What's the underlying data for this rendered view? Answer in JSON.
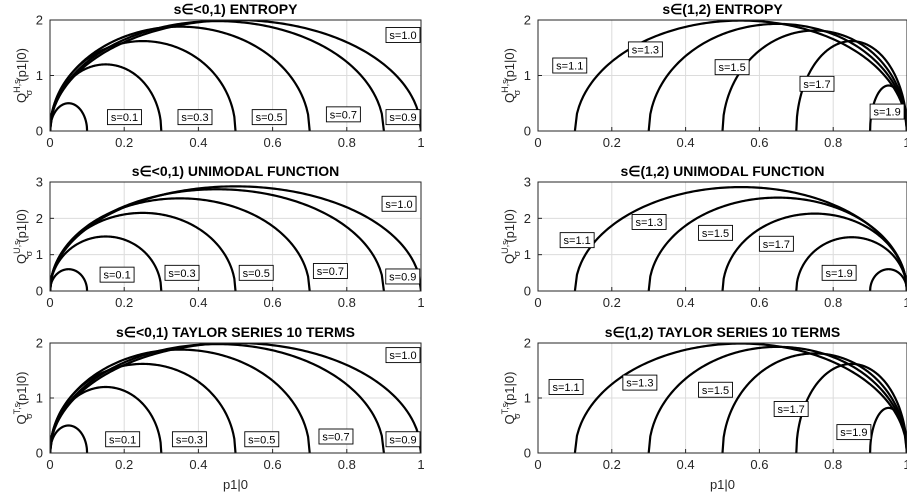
{
  "chart_data": [
    {
      "type": "line",
      "title": "s∈<0,1) ENTROPY",
      "ylabel": {
        "main": "Q",
        "sup": "H,s",
        "sub": "σ",
        "rest": "(p1|0)"
      },
      "xlabel": "",
      "xlim": [
        0,
        1
      ],
      "ylim": [
        0,
        2
      ],
      "xticks": [
        0,
        0.2,
        0.4,
        0.6,
        0.8,
        1
      ],
      "xticklabels": [
        "0",
        "0.2",
        "0.4",
        "0.6",
        "0.8",
        "1"
      ],
      "yticks": [
        0,
        1,
        2
      ],
      "yticklabels": [
        "0",
        "1",
        "2"
      ],
      "grid": true,
      "series": [
        {
          "name": "s=0.1",
          "x_range": [
            0,
            0.1
          ],
          "peak_x": 0.05,
          "peak_y": 0.5,
          "label_at": [
            0.155,
            0.25
          ]
        },
        {
          "name": "s=0.3",
          "x_range": [
            0,
            0.3
          ],
          "peak_x": 0.15,
          "peak_y": 1.2,
          "label_at": [
            0.345,
            0.25
          ]
        },
        {
          "name": "s=0.5",
          "x_range": [
            0,
            0.5
          ],
          "peak_x": 0.25,
          "peak_y": 1.62,
          "label_at": [
            0.545,
            0.25
          ]
        },
        {
          "name": "s=0.7",
          "x_range": [
            0,
            0.7
          ],
          "peak_x": 0.35,
          "peak_y": 1.88,
          "label_at": [
            0.745,
            0.3
          ]
        },
        {
          "name": "s=0.9",
          "x_range": [
            0,
            0.9
          ],
          "peak_x": 0.45,
          "peak_y": 1.98,
          "label_at": [
            0.945,
            0.25
          ]
        },
        {
          "name": "s=1.0",
          "x_range": [
            0,
            1.0
          ],
          "peak_x": 0.5,
          "peak_y": 2.0,
          "label_at": [
            0.915,
            1.73
          ]
        }
      ]
    },
    {
      "type": "line",
      "title": "s∈(1,2) ENTROPY",
      "ylabel": {
        "main": "Q",
        "sup": "H,s",
        "sub": "σ",
        "rest": "(p1|0)"
      },
      "xlabel": "",
      "xlim": [
        0,
        1
      ],
      "ylim": [
        0,
        2
      ],
      "xticks": [
        0,
        0.2,
        0.4,
        0.6,
        0.8,
        1
      ],
      "xticklabels": [
        "0",
        "0.2",
        "0.4",
        "0.6",
        "0.8",
        "1"
      ],
      "yticks": [
        0,
        1,
        2
      ],
      "yticklabels": [
        "0",
        "1",
        "2"
      ],
      "grid": true,
      "series": [
        {
          "name": "s=1.1",
          "x_range": [
            0.1,
            1.0
          ],
          "peak_x": 0.55,
          "peak_y": 1.99,
          "label_at": [
            0.04,
            1.18
          ]
        },
        {
          "name": "s=1.3",
          "x_range": [
            0.3,
            1.0
          ],
          "peak_x": 0.65,
          "peak_y": 1.93,
          "label_at": [
            0.245,
            1.47
          ]
        },
        {
          "name": "s=1.5",
          "x_range": [
            0.5,
            1.0
          ],
          "peak_x": 0.75,
          "peak_y": 1.81,
          "label_at": [
            0.48,
            1.15
          ]
        },
        {
          "name": "s=1.7",
          "x_range": [
            0.7,
            1.0
          ],
          "peak_x": 0.85,
          "peak_y": 1.62,
          "label_at": [
            0.71,
            0.85
          ]
        },
        {
          "name": "s=1.9",
          "x_range": [
            0.9,
            1.0
          ],
          "peak_x": 0.95,
          "peak_y": 0.82,
          "label_at": [
            0.9,
            0.35
          ]
        }
      ]
    },
    {
      "type": "line",
      "title": "s∈<0,1) UNIMODAL FUNCTION",
      "ylabel": {
        "main": "Q",
        "sup": "U,s",
        "sub": "σ",
        "rest": "(p1|0)"
      },
      "xlabel": "",
      "xlim": [
        0,
        1
      ],
      "ylim": [
        0,
        3
      ],
      "xticks": [
        0,
        0.2,
        0.4,
        0.6,
        0.8,
        1
      ],
      "xticklabels": [
        "0",
        "0.2",
        "0.4",
        "0.6",
        "0.8",
        "1"
      ],
      "yticks": [
        0,
        1,
        2,
        3
      ],
      "yticklabels": [
        "0",
        "1",
        "2",
        "3"
      ],
      "grid": true,
      "series": [
        {
          "name": "s=0.1",
          "x_range": [
            0,
            0.1
          ],
          "peak_x": 0.05,
          "peak_y": 0.6,
          "label_at": [
            0.135,
            0.45
          ]
        },
        {
          "name": "s=0.3",
          "x_range": [
            0,
            0.3
          ],
          "peak_x": 0.15,
          "peak_y": 1.5,
          "label_at": [
            0.31,
            0.5
          ]
        },
        {
          "name": "s=0.5",
          "x_range": [
            0,
            0.5
          ],
          "peak_x": 0.25,
          "peak_y": 2.15,
          "label_at": [
            0.51,
            0.5
          ]
        },
        {
          "name": "s=0.7",
          "x_range": [
            0,
            0.7
          ],
          "peak_x": 0.35,
          "peak_y": 2.55,
          "label_at": [
            0.71,
            0.55
          ]
        },
        {
          "name": "s=0.9",
          "x_range": [
            0,
            0.9
          ],
          "peak_x": 0.45,
          "peak_y": 2.8,
          "label_at": [
            0.905,
            0.4
          ]
        },
        {
          "name": "s=1.0",
          "x_range": [
            0,
            1.0
          ],
          "peak_x": 0.5,
          "peak_y": 2.88,
          "label_at": [
            0.895,
            2.4
          ]
        }
      ]
    },
    {
      "type": "line",
      "title": "s∈(1,2) UNIMODAL FUNCTION",
      "ylabel": {
        "main": "Q",
        "sup": "U,s",
        "sub": "σ",
        "rest": "(p1|0)"
      },
      "xlabel": "",
      "xlim": [
        0,
        1
      ],
      "ylim": [
        0,
        3
      ],
      "xticks": [
        0,
        0.2,
        0.4,
        0.6,
        0.8,
        1
      ],
      "xticklabels": [
        "0",
        "0.2",
        "0.4",
        "0.6",
        "0.8",
        "1"
      ],
      "yticks": [
        0,
        1,
        2,
        3
      ],
      "yticklabels": [
        "0",
        "1",
        "2",
        "3"
      ],
      "grid": true,
      "series": [
        {
          "name": "s=1.1",
          "x_range": [
            0.1,
            1.0
          ],
          "peak_x": 0.55,
          "peak_y": 2.86,
          "label_at": [
            0.06,
            1.4
          ]
        },
        {
          "name": "s=1.3",
          "x_range": [
            0.3,
            1.0
          ],
          "peak_x": 0.65,
          "peak_y": 2.57,
          "label_at": [
            0.255,
            1.9
          ]
        },
        {
          "name": "s=1.5",
          "x_range": [
            0.5,
            1.0
          ],
          "peak_x": 0.75,
          "peak_y": 2.13,
          "label_at": [
            0.435,
            1.6
          ]
        },
        {
          "name": "s=1.7",
          "x_range": [
            0.7,
            1.0
          ],
          "peak_x": 0.85,
          "peak_y": 1.48,
          "label_at": [
            0.6,
            1.3
          ]
        },
        {
          "name": "s=1.9",
          "x_range": [
            0.9,
            1.0
          ],
          "peak_x": 0.95,
          "peak_y": 0.6,
          "label_at": [
            0.77,
            0.5
          ]
        }
      ]
    },
    {
      "type": "line",
      "title": "s∈<0,1) TAYLOR SERIES 10 TERMS",
      "ylabel": {
        "main": "Q",
        "sup": "T,s",
        "sub": "σ",
        "rest": "(p1|0)"
      },
      "xlabel": "p1|0",
      "xlim": [
        0,
        1
      ],
      "ylim": [
        0,
        2
      ],
      "xticks": [
        0,
        0.2,
        0.4,
        0.6,
        0.8,
        1
      ],
      "xticklabels": [
        "0",
        "0.2",
        "0.4",
        "0.6",
        "0.8",
        "1"
      ],
      "yticks": [
        0,
        1,
        2
      ],
      "yticklabels": [
        "0",
        "1",
        "2"
      ],
      "grid": true,
      "series": [
        {
          "name": "s=0.1",
          "x_range": [
            0,
            0.1
          ],
          "peak_x": 0.05,
          "peak_y": 0.5,
          "label_at": [
            0.15,
            0.25
          ]
        },
        {
          "name": "s=0.3",
          "x_range": [
            0,
            0.3
          ],
          "peak_x": 0.15,
          "peak_y": 1.2,
          "label_at": [
            0.33,
            0.25
          ]
        },
        {
          "name": "s=0.5",
          "x_range": [
            0,
            0.5
          ],
          "peak_x": 0.25,
          "peak_y": 1.62,
          "label_at": [
            0.525,
            0.25
          ]
        },
        {
          "name": "s=0.7",
          "x_range": [
            0,
            0.7
          ],
          "peak_x": 0.35,
          "peak_y": 1.88,
          "label_at": [
            0.725,
            0.3
          ]
        },
        {
          "name": "s=0.9",
          "x_range": [
            0,
            0.9
          ],
          "peak_x": 0.45,
          "peak_y": 1.98,
          "label_at": [
            0.925,
            0.25
          ]
        },
        {
          "name": "s=1.0",
          "x_range": [
            0,
            1.0
          ],
          "peak_x": 0.5,
          "peak_y": 2.0,
          "label_at": [
            0.94,
            1.78
          ]
        }
      ]
    },
    {
      "type": "line",
      "title": "s∈(1,2) TAYLOR SERIES 10 TERMS",
      "ylabel": {
        "main": "Q",
        "sup": "T,s",
        "sub": "σ",
        "rest": "(p1|0)"
      },
      "xlabel": "p1|0",
      "xlim": [
        0,
        1
      ],
      "ylim": [
        0,
        2
      ],
      "xticks": [
        0,
        0.2,
        0.4,
        0.6,
        0.8,
        1
      ],
      "xticklabels": [
        "0",
        "0.2",
        "0.4",
        "0.6",
        "0.8",
        "1"
      ],
      "yticks": [
        0,
        1,
        2
      ],
      "yticklabels": [
        "0",
        "1",
        "2"
      ],
      "grid": true,
      "series": [
        {
          "name": "s=1.1",
          "x_range": [
            0.1,
            1.0
          ],
          "peak_x": 0.55,
          "peak_y": 1.99,
          "label_at": [
            0.03,
            1.2
          ]
        },
        {
          "name": "s=1.3",
          "x_range": [
            0.3,
            1.0
          ],
          "peak_x": 0.65,
          "peak_y": 1.93,
          "label_at": [
            0.23,
            1.28
          ]
        },
        {
          "name": "s=1.5",
          "x_range": [
            0.5,
            1.0
          ],
          "peak_x": 0.75,
          "peak_y": 1.81,
          "label_at": [
            0.435,
            1.15
          ]
        },
        {
          "name": "s=1.7",
          "x_range": [
            0.7,
            1.0
          ],
          "peak_x": 0.85,
          "peak_y": 1.62,
          "label_at": [
            0.64,
            0.8
          ]
        },
        {
          "name": "s=1.9",
          "x_range": [
            0.9,
            1.0
          ],
          "peak_x": 0.95,
          "peak_y": 0.82,
          "label_at": [
            0.81,
            0.38
          ]
        }
      ]
    }
  ]
}
